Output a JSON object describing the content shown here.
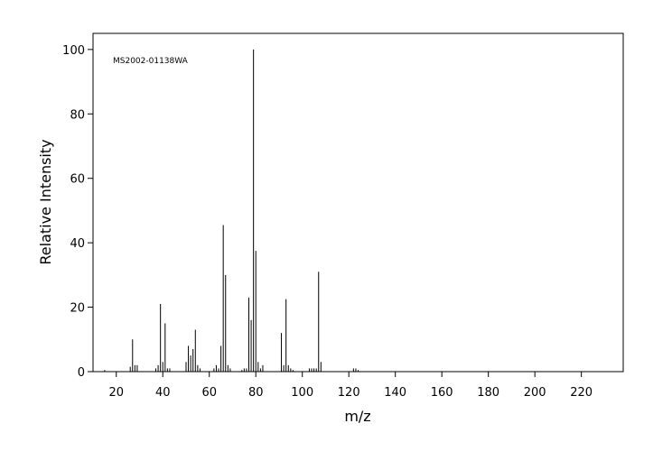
{
  "chart_data": {
    "type": "stick",
    "annotation": "MS2002-01138WA",
    "x_label": "m/z",
    "y_label": "Relative Intensity",
    "x": [
      15,
      26,
      27,
      28,
      29,
      37,
      38,
      39,
      40,
      41,
      42,
      43,
      50,
      51,
      52,
      53,
      54,
      55,
      56,
      62,
      63,
      64,
      65,
      66,
      67,
      68,
      69,
      74,
      75,
      76,
      77,
      78,
      79,
      80,
      81,
      82,
      83,
      91,
      92,
      93,
      94,
      95,
      96,
      103,
      104,
      105,
      106,
      107,
      108,
      122,
      123,
      124
    ],
    "values": [
      0.5,
      1.5,
      10,
      2,
      2,
      1,
      2,
      21,
      3,
      15,
      1,
      1,
      3,
      8,
      5,
      7,
      13,
      2,
      1,
      1,
      2,
      1,
      8,
      45.5,
      30,
      2,
      1,
      0.5,
      1,
      1,
      23,
      16,
      100,
      37.5,
      3,
      1,
      2,
      12,
      2,
      22.5,
      2,
      1,
      0.5,
      1,
      1,
      1,
      1,
      31,
      3,
      1,
      1,
      0.5
    ],
    "color": "#000000",
    "xlim": [
      10,
      238
    ],
    "xticks": [
      20,
      40,
      60,
      80,
      100,
      120,
      140,
      160,
      180,
      200,
      220
    ],
    "ylim": [
      0,
      105
    ],
    "yticks": [
      0,
      20,
      40,
      60,
      80,
      100
    ]
  }
}
